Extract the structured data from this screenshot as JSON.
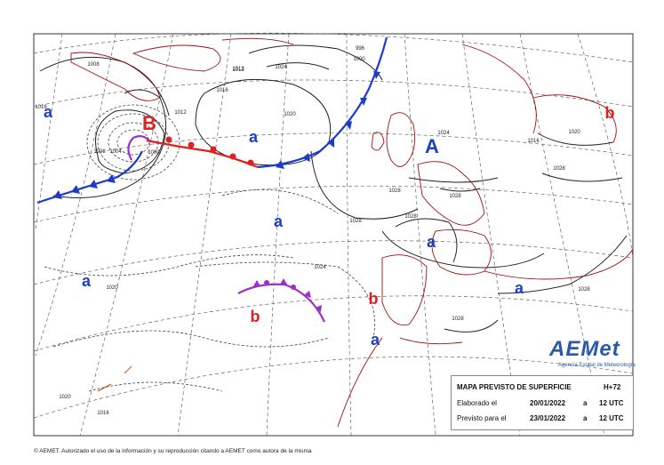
{
  "map": {
    "pressure_systems": [
      {
        "label": "B",
        "kind": "low",
        "color": "#e02020"
      },
      {
        "label": "A",
        "kind": "high",
        "color": "#2040c0"
      },
      {
        "label": "a",
        "kind": "high",
        "color": "#2040c0"
      },
      {
        "label": "a",
        "kind": "high",
        "color": "#2040c0"
      },
      {
        "label": "a",
        "kind": "high",
        "color": "#2040c0"
      },
      {
        "label": "a",
        "kind": "high",
        "color": "#2040c0"
      },
      {
        "label": "a",
        "kind": "high",
        "color": "#2040c0"
      },
      {
        "label": "a",
        "kind": "high",
        "color": "#2040c0"
      },
      {
        "label": "a",
        "kind": "high",
        "color": "#2040c0"
      },
      {
        "label": "b",
        "kind": "low",
        "color": "#e02020"
      },
      {
        "label": "b",
        "kind": "low",
        "color": "#e02020"
      },
      {
        "label": "b",
        "kind": "low",
        "color": "#e02020"
      }
    ],
    "isobar_labels": [
      "1008",
      "1012",
      "1016",
      "1020",
      "1024",
      "1028",
      "1008",
      "1004",
      "1000",
      "1012",
      "1016",
      "1020",
      "1024",
      "1028",
      "1028",
      "1028",
      "1028",
      "1028",
      "1028",
      "1020",
      "1016",
      "1024",
      "996",
      "1000",
      "1012",
      "1020",
      "1016"
    ],
    "fronts": [
      {
        "type": "cold",
        "color": "#1a3cc8"
      },
      {
        "type": "warm",
        "color": "#e02020"
      },
      {
        "type": "occluded",
        "color": "#9b30c8"
      }
    ],
    "colors": {
      "coast": "#a01010",
      "grid": "#555555",
      "isobar": "#222222"
    }
  },
  "info_box": {
    "title": "MAPA PREVISTO DE SUPERFICIE",
    "range": "H+72",
    "elaborado_label": "Elaborado el",
    "elaborado_date": "20/01/2022",
    "elaborado_a": "a",
    "elaborado_time": "12 UTC",
    "previsto_label": "Previsto para el",
    "previsto_date": "23/01/2022",
    "previsto_a": "a",
    "previsto_time": "12 UTC"
  },
  "logo": {
    "name": "AEMet",
    "subtitle": "Agencia Estatal de Meteorología"
  },
  "footer": "© AEMET. Autorizado el uso de la información y su reproducción citando a AEMET como autora de la misma"
}
